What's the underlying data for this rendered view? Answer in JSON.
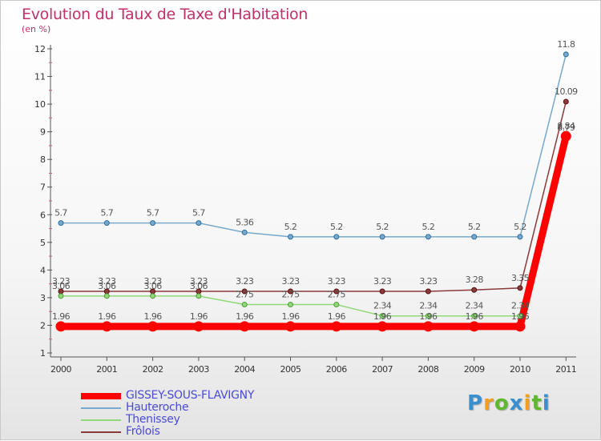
{
  "chart_data": {
    "type": "line",
    "title": "Evolution du Taux de Taxe d'Habitation",
    "subtitle": "(en %)",
    "xlabel": "",
    "ylabel": "",
    "x": [
      "2000",
      "2001",
      "2002",
      "2003",
      "2004",
      "2005",
      "2006",
      "2007",
      "2008",
      "2009",
      "2010",
      "2011"
    ],
    "yticks": [
      "1",
      "2",
      "3",
      "4",
      "5",
      "6",
      "7",
      "8",
      "9",
      "10",
      "11",
      "12"
    ],
    "ylim": [
      1,
      12
    ],
    "grid": false,
    "legend_position": "bottom-left",
    "series": [
      {
        "name": "GISSEY-SOUS-FLAVIGNY",
        "color": "#ff0000",
        "marker_stroke": "#ff0000",
        "emphasis": true,
        "values": [
          1.96,
          1.96,
          1.96,
          1.96,
          1.96,
          1.96,
          1.96,
          1.96,
          1.96,
          1.96,
          1.96,
          8.84
        ],
        "labels": [
          "1.96",
          "1.96",
          "1.96",
          "1.96",
          "1.96",
          "1.96",
          "1.96",
          "1.96",
          "1.96",
          "1.96",
          "1.96",
          "8.84"
        ]
      },
      {
        "name": "Hauteroche",
        "color": "#78a8cc",
        "marker_stroke": "#2d6f9f",
        "values": [
          5.7,
          5.7,
          5.7,
          5.7,
          5.36,
          5.2,
          5.2,
          5.2,
          5.2,
          5.2,
          5.2,
          11.8
        ],
        "labels": [
          "5.7",
          "5.7",
          "5.7",
          "5.7",
          "5.36",
          "5.2",
          "5.2",
          "5.2",
          "5.2",
          "5.2",
          "5.2",
          "11.8"
        ]
      },
      {
        "name": "Thenissey",
        "color": "#90d878",
        "marker_stroke": "#4f9a38",
        "values": [
          3.06,
          3.06,
          3.06,
          3.06,
          2.75,
          2.75,
          2.75,
          2.34,
          2.34,
          2.34,
          2.34,
          8.79
        ],
        "labels": [
          "3.06",
          "3.06",
          "3.06",
          "3.06",
          "2.75",
          "2.75",
          "2.75",
          "2.34",
          "2.34",
          "2.34",
          "2.34",
          "8.79"
        ]
      },
      {
        "name": "Frôlois",
        "color": "#8a3a3a",
        "marker_stroke": "#5a1010",
        "values": [
          3.23,
          3.23,
          3.23,
          3.23,
          3.23,
          3.23,
          3.23,
          3.23,
          3.23,
          3.28,
          3.35,
          10.09
        ],
        "labels": [
          "3.23",
          "3.23",
          "3.23",
          "3.23",
          "3.23",
          "3.23",
          "3.23",
          "3.23",
          "3.23",
          "3.28",
          "3.35",
          "10.09"
        ]
      }
    ]
  },
  "branding": {
    "logo_letters": [
      "P",
      "r",
      "o",
      "x",
      "i",
      "t",
      "i"
    ],
    "logo_colors": [
      "#3a8fd0",
      "#f0a020",
      "#60b830",
      "#3a8fd0",
      "#f0a020",
      "#60b830",
      "#3a8fd0"
    ]
  }
}
